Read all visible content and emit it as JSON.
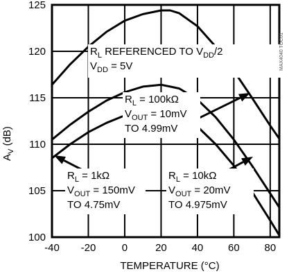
{
  "chart_data": {
    "type": "line",
    "xlabel": "TEMPERATURE (°C)",
    "ylabel": "AV (dB)",
    "xlim": [
      -40,
      85
    ],
    "ylim": [
      100,
      125
    ],
    "x_ticks": [
      "-40",
      "-20",
      "0",
      "20",
      "40",
      "60",
      "80"
    ],
    "y_ticks": [
      "100",
      "105",
      "110",
      "115",
      "120",
      "125"
    ],
    "grid": true,
    "watermark": "MAX4040 TOC01",
    "series": [
      {
        "x": [
          -40,
          -30,
          -20,
          -10,
          0,
          10,
          20,
          25,
          30,
          40,
          50,
          60,
          70,
          80,
          85
        ],
        "y": [
          116.4,
          118.6,
          120.5,
          122.1,
          123.3,
          124.0,
          124.4,
          124.4,
          124.1,
          122.7,
          120.5,
          117.9,
          115.0,
          112.0,
          110.6
        ]
      },
      {
        "x": [
          -40,
          -30,
          -20,
          -10,
          0,
          10,
          20,
          30,
          40,
          50,
          60,
          70,
          80,
          85
        ],
        "y": [
          110.5,
          112.1,
          113.5,
          114.7,
          115.6,
          116.2,
          116.4,
          116.0,
          114.8,
          112.9,
          110.5,
          107.7,
          104.7,
          103.2
        ]
      },
      {
        "x": [
          -40,
          -30,
          -20,
          -10,
          0,
          10,
          20,
          30,
          40,
          50,
          60,
          70,
          80,
          85
        ],
        "y": [
          108.5,
          110.0,
          111.3,
          112.3,
          113.1,
          113.5,
          113.6,
          113.1,
          111.9,
          110.0,
          107.7,
          104.9,
          101.8,
          100.2
        ]
      }
    ],
    "annotations": [
      {
        "line1": [
          "R",
          "L",
          " REFERENCED TO V",
          "DD",
          "/2"
        ],
        "line2": [
          "V",
          "DD",
          " = 5V"
        ]
      },
      {
        "line1": [
          "R",
          "L",
          " = 100kΩ"
        ],
        "line2": [
          "V",
          "OUT",
          " = 10mV"
        ],
        "line3": "TO 4.99mV"
      },
      {
        "line1": [
          "R",
          "L",
          " = 1kΩ"
        ],
        "line2": [
          "V",
          "OUT",
          " = 150mV"
        ],
        "line3": "TO 4.75mV"
      },
      {
        "line1": [
          "R",
          "L",
          " = 10kΩ"
        ],
        "line2": [
          "V",
          "OUT",
          " = 20mV"
        ],
        "line3": "TO 4.975mV"
      }
    ]
  }
}
